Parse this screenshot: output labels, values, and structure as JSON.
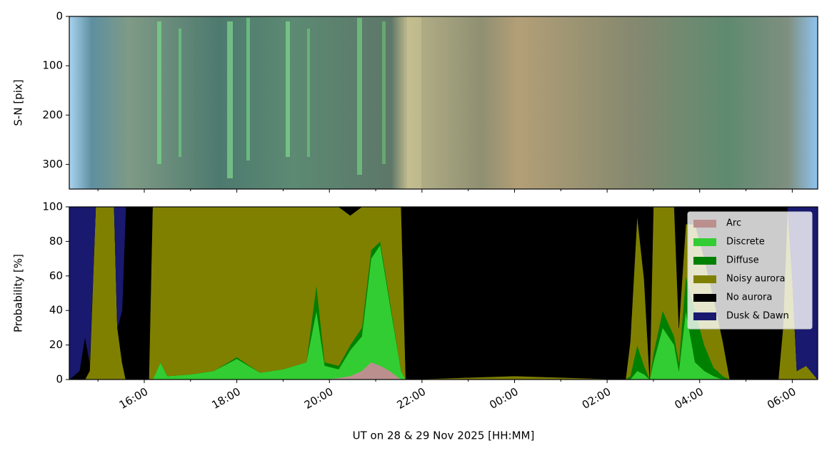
{
  "chart_data": [
    {
      "type": "image",
      "ylabel": "S-N [pix]",
      "ylim": [
        350,
        0
      ],
      "yticks": [
        0,
        100,
        200,
        300
      ],
      "xlim": [
        14.38,
        30.55
      ],
      "xticks": [
        16,
        18,
        20,
        22,
        24,
        26,
        28,
        30
      ],
      "xminor": [
        15,
        17,
        19,
        21,
        23,
        25,
        27,
        29
      ]
    },
    {
      "type": "area",
      "ylabel": "Probability [%]",
      "xlabel": "UT on 28 & 29 Nov 2025 [HH:MM]",
      "xlim": [
        14.38,
        30.55
      ],
      "ylim": [
        0,
        100
      ],
      "yticks": [
        0,
        20,
        40,
        60,
        80,
        100
      ],
      "xticks": [
        {
          "value": 16,
          "label": "16:00"
        },
        {
          "value": 18,
          "label": "18:00"
        },
        {
          "value": 20,
          "label": "20:00"
        },
        {
          "value": 22,
          "label": "22:00"
        },
        {
          "value": 24,
          "label": "00:00"
        },
        {
          "value": 26,
          "label": "02:00"
        },
        {
          "value": 28,
          "label": "04:00"
        },
        {
          "value": 30,
          "label": "06:00"
        }
      ],
      "xminor": [
        15,
        17,
        19,
        21,
        23,
        25,
        27,
        29
      ],
      "legend": "upper right",
      "x": [
        14.38,
        14.6,
        14.72,
        14.82,
        14.95,
        15.35,
        15.42,
        15.52,
        15.6,
        16.1,
        16.18,
        16.35,
        16.5,
        17.0,
        17.5,
        18.0,
        18.5,
        19.0,
        19.5,
        19.72,
        19.9,
        20.2,
        20.45,
        20.7,
        20.9,
        21.1,
        21.3,
        21.55,
        21.65,
        24.0,
        26.4,
        26.5,
        26.65,
        26.8,
        26.92,
        27.0,
        27.2,
        27.45,
        27.55,
        27.7,
        27.9,
        28.1,
        28.3,
        28.5,
        28.65,
        29.7,
        29.8,
        29.9,
        30.0,
        30.1,
        30.3,
        30.55
      ],
      "series": [
        {
          "name": "Arc",
          "color": "#bc8f8f",
          "values": [
            0,
            0,
            0,
            0,
            0,
            0,
            0,
            0,
            0,
            0,
            0,
            0,
            0,
            0,
            0,
            0,
            0,
            0,
            0,
            0,
            0,
            1,
            2,
            5,
            10,
            8,
            5,
            0,
            0,
            0,
            0,
            0,
            0,
            0,
            0,
            0,
            0,
            0,
            0,
            0,
            0,
            0,
            0,
            0,
            0,
            0,
            0,
            0,
            0,
            0,
            0,
            0
          ]
        },
        {
          "name": "Discrete",
          "color": "#32cd32",
          "values": [
            0,
            0,
            0,
            0,
            0,
            0,
            0,
            0,
            0,
            0,
            0,
            10,
            2,
            3,
            5,
            12,
            4,
            6,
            10,
            40,
            8,
            5,
            15,
            20,
            60,
            70,
            40,
            5,
            0,
            0,
            0,
            0,
            5,
            3,
            0,
            10,
            30,
            20,
            5,
            40,
            10,
            5,
            2,
            0,
            0,
            0,
            0,
            0,
            0,
            0,
            0,
            0
          ]
        },
        {
          "name": "Diffuse",
          "color": "#008000",
          "values": [
            0,
            0,
            0,
            0,
            0,
            0,
            0,
            0,
            0,
            0,
            0,
            0,
            0,
            0,
            0,
            1,
            0,
            0,
            0,
            15,
            2,
            2,
            3,
            5,
            5,
            2,
            2,
            0,
            0,
            0,
            0,
            2,
            15,
            5,
            0,
            5,
            10,
            5,
            5,
            20,
            30,
            15,
            5,
            2,
            0,
            0,
            0,
            0,
            0,
            0,
            0,
            0
          ]
        },
        {
          "name": "Noisy aurora",
          "color": "#808000",
          "values": [
            0,
            0,
            0,
            5,
            100,
            100,
            30,
            10,
            0,
            0,
            100,
            90,
            98,
            97,
            95,
            87,
            96,
            94,
            90,
            45,
            90,
            92,
            75,
            70,
            25,
            20,
            53,
            95,
            0,
            2,
            0,
            20,
            75,
            50,
            0,
            85,
            60,
            75,
            20,
            30,
            50,
            50,
            40,
            20,
            0,
            0,
            30,
            100,
            60,
            5,
            8,
            0
          ]
        },
        {
          "name": "No aurora",
          "color": "#000000",
          "values": [
            0,
            5,
            25,
            5,
            0,
            0,
            0,
            30,
            100,
            100,
            0,
            0,
            0,
            0,
            0,
            0,
            0,
            0,
            0,
            0,
            0,
            0,
            5,
            0,
            0,
            0,
            0,
            0,
            100,
            98,
            100,
            78,
            5,
            42,
            100,
            0,
            0,
            0,
            70,
            10,
            10,
            30,
            53,
            78,
            100,
            100,
            70,
            0,
            0,
            0,
            0,
            0
          ]
        },
        {
          "name": "Dusk & Dawn",
          "color": "#191970",
          "values": [
            100,
            95,
            75,
            90,
            0,
            0,
            70,
            60,
            0,
            0,
            0,
            0,
            0,
            0,
            0,
            0,
            0,
            0,
            0,
            0,
            0,
            0,
            0,
            0,
            0,
            0,
            0,
            0,
            0,
            0,
            0,
            0,
            0,
            0,
            0,
            0,
            0,
            0,
            0,
            0,
            0,
            0,
            0,
            0,
            0,
            0,
            0,
            0,
            40,
            95,
            92,
            100
          ]
        }
      ]
    }
  ]
}
